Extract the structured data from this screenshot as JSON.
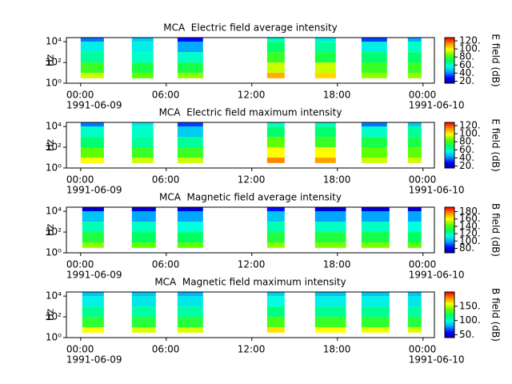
{
  "chart_data": [
    {
      "type": "spectrogram",
      "title": "MCA  Electric field average intensity",
      "ylabel": "Hz",
      "colorbar_label": "E field (dB)",
      "xlim": [
        -1.0,
        24.8
      ],
      "xticks": [
        {
          "value": 0,
          "label": "00:00"
        },
        {
          "value": 6,
          "label": "06:00"
        },
        {
          "value": 12,
          "label": "12:00"
        },
        {
          "value": 18,
          "label": "18:00"
        },
        {
          "value": 24,
          "label": "00:00"
        }
      ],
      "date_labels": [
        {
          "value": 0,
          "label": "1991-06-09"
        },
        {
          "value": 24,
          "label": "1991-06-10"
        }
      ],
      "ylim": [
        1,
        25000
      ],
      "log_y": true,
      "yticks": [
        {
          "value": 1,
          "label": "10⁰"
        },
        {
          "value": 100,
          "label": "10²"
        },
        {
          "value": 10000,
          "label": "10⁴"
        }
      ],
      "bins": [
        3,
        10,
        100,
        1000,
        10000,
        25000
      ],
      "clim": [
        15,
        128
      ],
      "cticks": [
        {
          "value": 20,
          "label": "20."
        },
        {
          "value": 40,
          "label": "40."
        },
        {
          "value": 60,
          "label": "60."
        },
        {
          "value": 80,
          "label": "80."
        },
        {
          "value": 100,
          "label": "100."
        },
        {
          "value": 120,
          "label": "120."
        }
      ],
      "colormap": [
        "#0000a0",
        "#0000ff",
        "#00a0ff",
        "#00ffe0",
        "#00ff60",
        "#60ff00",
        "#ffff00",
        "#ff9000",
        "#ff0000"
      ],
      "segments": [
        {
          "start": 0.0,
          "end": 1.63,
          "values": [
            95,
            80,
            65,
            55,
            40
          ]
        },
        {
          "start": 3.59,
          "end": 5.1,
          "values": [
            85,
            75,
            60,
            55,
            50
          ]
        },
        {
          "start": 6.79,
          "end": 8.58,
          "values": [
            90,
            75,
            60,
            45,
            30
          ]
        },
        {
          "start": 13.07,
          "end": 14.3,
          "values": [
            110,
            95,
            80,
            70,
            60
          ]
        },
        {
          "start": 16.43,
          "end": 17.89,
          "values": [
            105,
            95,
            75,
            65,
            55
          ]
        },
        {
          "start": 19.69,
          "end": 21.48,
          "values": [
            90,
            80,
            70,
            55,
            35
          ]
        },
        {
          "start": 22.94,
          "end": 23.89,
          "values": [
            90,
            80,
            70,
            60,
            45
          ]
        }
      ]
    },
    {
      "type": "spectrogram",
      "title": "MCA  Electric field maximum intensity",
      "ylabel": "Hz",
      "colorbar_label": "E field (dB)",
      "xlim": [
        -1.0,
        24.8
      ],
      "xticks": [
        {
          "value": 0,
          "label": "00:00"
        },
        {
          "value": 6,
          "label": "06:00"
        },
        {
          "value": 12,
          "label": "12:00"
        },
        {
          "value": 18,
          "label": "18:00"
        },
        {
          "value": 24,
          "label": "00:00"
        }
      ],
      "date_labels": [
        {
          "value": 0,
          "label": "1991-06-09"
        },
        {
          "value": 24,
          "label": "1991-06-10"
        }
      ],
      "ylim": [
        1,
        25000
      ],
      "log_y": true,
      "yticks": [
        {
          "value": 1,
          "label": "10⁰"
        },
        {
          "value": 100,
          "label": "10²"
        },
        {
          "value": 10000,
          "label": "10⁴"
        }
      ],
      "bins": [
        3,
        10,
        100,
        1000,
        10000,
        25000
      ],
      "clim": [
        15,
        128
      ],
      "cticks": [
        {
          "value": 20,
          "label": "20."
        },
        {
          "value": 40,
          "label": "40."
        },
        {
          "value": 60,
          "label": "60."
        },
        {
          "value": 80,
          "label": "80."
        },
        {
          "value": 100,
          "label": "100."
        },
        {
          "value": 120,
          "label": "120."
        }
      ],
      "colormap": [
        "#0000a0",
        "#0000ff",
        "#00a0ff",
        "#00ffe0",
        "#00ff60",
        "#60ff00",
        "#ffff00",
        "#ff9000",
        "#ff0000"
      ],
      "segments": [
        {
          "start": 0.0,
          "end": 1.63,
          "values": [
            100,
            85,
            70,
            60,
            40
          ]
        },
        {
          "start": 3.59,
          "end": 5.1,
          "values": [
            95,
            80,
            65,
            60,
            55
          ]
        },
        {
          "start": 6.79,
          "end": 8.58,
          "values": [
            95,
            80,
            65,
            50,
            35
          ]
        },
        {
          "start": 13.07,
          "end": 14.3,
          "values": [
            115,
            100,
            85,
            70,
            60
          ]
        },
        {
          "start": 16.43,
          "end": 17.89,
          "values": [
            112,
            100,
            80,
            70,
            60
          ]
        },
        {
          "start": 19.69,
          "end": 21.48,
          "values": [
            95,
            85,
            75,
            60,
            40
          ]
        },
        {
          "start": 22.94,
          "end": 23.89,
          "values": [
            95,
            85,
            75,
            65,
            50
          ]
        }
      ]
    },
    {
      "type": "spectrogram",
      "title": "MCA  Magnetic field average intensity",
      "ylabel": "Hz",
      "colorbar_label": "B field (dB)",
      "xlim": [
        -1.0,
        24.8
      ],
      "xticks": [
        {
          "value": 0,
          "label": "00:00"
        },
        {
          "value": 6,
          "label": "06:00"
        },
        {
          "value": 12,
          "label": "12:00"
        },
        {
          "value": 18,
          "label": "18:00"
        },
        {
          "value": 24,
          "label": "00:00"
        }
      ],
      "date_labels": [
        {
          "value": 0,
          "label": "1991-06-09"
        },
        {
          "value": 24,
          "label": "1991-06-10"
        }
      ],
      "ylim": [
        1,
        25000
      ],
      "log_y": true,
      "yticks": [
        {
          "value": 1,
          "label": "10⁰"
        },
        {
          "value": 100,
          "label": "10²"
        },
        {
          "value": 10000,
          "label": "10⁴"
        }
      ],
      "bins": [
        3,
        10,
        100,
        1000,
        10000,
        25000
      ],
      "clim": [
        68,
        192
      ],
      "cticks": [
        {
          "value": 80,
          "label": "80."
        },
        {
          "value": 100,
          "label": "100."
        },
        {
          "value": 120,
          "label": "120."
        },
        {
          "value": 140,
          "label": "140."
        },
        {
          "value": 160,
          "label": "160."
        },
        {
          "value": 180,
          "label": "180."
        }
      ],
      "colormap": [
        "#0000a0",
        "#0000ff",
        "#00a0ff",
        "#00ffe0",
        "#00ff60",
        "#60ff00",
        "#ffff00",
        "#ff9000",
        "#ff0000"
      ],
      "segments": [
        {
          "start": 0.11,
          "end": 1.63,
          "values": [
            150,
            135,
            120,
            105,
            75
          ]
        },
        {
          "start": 3.59,
          "end": 5.27,
          "values": [
            145,
            130,
            118,
            100,
            75
          ]
        },
        {
          "start": 6.79,
          "end": 8.58,
          "values": [
            145,
            130,
            115,
            100,
            75
          ]
        },
        {
          "start": 13.07,
          "end": 14.3,
          "values": [
            150,
            135,
            120,
            105,
            85
          ]
        },
        {
          "start": 16.43,
          "end": 18.6,
          "values": [
            148,
            135,
            118,
            100,
            75
          ]
        },
        {
          "start": 19.69,
          "end": 21.65,
          "values": [
            148,
            133,
            118,
            100,
            75
          ]
        },
        {
          "start": 22.94,
          "end": 23.89,
          "values": [
            145,
            130,
            115,
            100,
            75
          ]
        }
      ]
    },
    {
      "type": "spectrogram",
      "title": "MCA  Magnetic field maximum intensity",
      "ylabel": "Hz",
      "colorbar_label": "B field (dB)",
      "xlim": [
        -1.0,
        24.8
      ],
      "xticks": [
        {
          "value": 0,
          "label": "00:00"
        },
        {
          "value": 6,
          "label": "06:00"
        },
        {
          "value": 12,
          "label": "12:00"
        },
        {
          "value": 18,
          "label": "18:00"
        },
        {
          "value": 24,
          "label": "00:00"
        }
      ],
      "date_labels": [
        {
          "value": 0,
          "label": "1991-06-09"
        },
        {
          "value": 24,
          "label": "1991-06-10"
        }
      ],
      "ylim": [
        1,
        25000
      ],
      "log_y": true,
      "yticks": [
        {
          "value": 1,
          "label": "10⁰"
        },
        {
          "value": 100,
          "label": "10²"
        },
        {
          "value": 10000,
          "label": "10⁴"
        }
      ],
      "bins": [
        3,
        10,
        100,
        1000,
        10000,
        25000
      ],
      "clim": [
        40,
        200
      ],
      "cticks": [
        {
          "value": 50,
          "label": "50."
        },
        {
          "value": 100,
          "label": "100."
        },
        {
          "value": 150,
          "label": "150."
        }
      ],
      "colormap": [
        "#0000a0",
        "#0000ff",
        "#00a0ff",
        "#00ffe0",
        "#00ff60",
        "#60ff00",
        "#ffff00",
        "#ff9000",
        "#ff0000"
      ],
      "segments": [
        {
          "start": 0.11,
          "end": 1.63,
          "values": [
            160,
            130,
            112,
            97,
            88
          ]
        },
        {
          "start": 3.59,
          "end": 5.27,
          "values": [
            155,
            128,
            110,
            95,
            88
          ]
        },
        {
          "start": 6.79,
          "end": 8.58,
          "values": [
            155,
            128,
            110,
            95,
            85
          ]
        },
        {
          "start": 13.07,
          "end": 14.3,
          "values": [
            165,
            135,
            115,
            100,
            90
          ]
        },
        {
          "start": 16.43,
          "end": 18.6,
          "values": [
            160,
            132,
            112,
            97,
            88
          ]
        },
        {
          "start": 19.69,
          "end": 21.65,
          "values": [
            158,
            130,
            112,
            97,
            88
          ]
        },
        {
          "start": 22.94,
          "end": 23.89,
          "values": [
            155,
            128,
            110,
            95,
            88
          ]
        }
      ]
    }
  ]
}
